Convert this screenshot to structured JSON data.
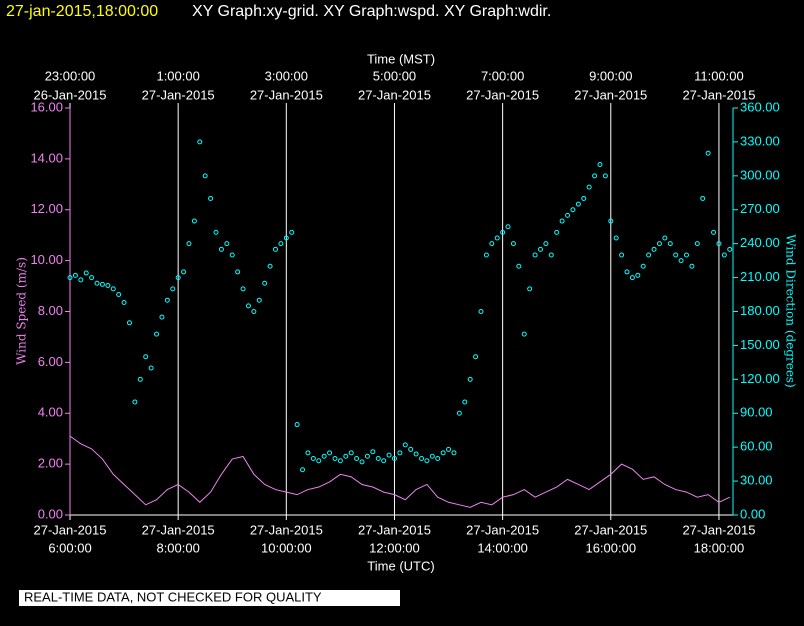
{
  "chart_data": {
    "type": "scatter",
    "title_time": "27-jan-2015,18:00:00",
    "title": "XY Graph:xy-grid.  XY Graph:wspd.  XY Graph:wdir.",
    "xlabel": "Time (UTC)",
    "x2label": "Time (MST)",
    "ylabel": "Wind Speed (m/s)",
    "y2label": "Wind Direction (degrees)",
    "note": "REAL-TIME DATA, NOT CHECKED FOR QUALITY",
    "xlim": [
      6,
      18.26
    ],
    "xticks": [
      {
        "value": 6,
        "date": "27-Jan-2015",
        "label": "6:00:00"
      },
      {
        "value": 8,
        "date": "27-Jan-2015",
        "label": "8:00:00"
      },
      {
        "value": 10,
        "date": "27-Jan-2015",
        "label": "10:00:00"
      },
      {
        "value": 12,
        "date": "27-Jan-2015",
        "label": "12:00:00"
      },
      {
        "value": 14,
        "date": "27-Jan-2015",
        "label": "14:00:00"
      },
      {
        "value": 16,
        "date": "27-Jan-2015",
        "label": "16:00:00"
      },
      {
        "value": 18,
        "date": "27-Jan-2015",
        "label": "18:00:00"
      }
    ],
    "x2ticks": [
      {
        "value": 6,
        "label": "23:00:00",
        "date": "26-Jan-2015"
      },
      {
        "value": 8,
        "label": "1:00:00",
        "date": "27-Jan-2015"
      },
      {
        "value": 10,
        "label": "3:00:00",
        "date": "27-Jan-2015"
      },
      {
        "value": 12,
        "label": "5:00:00",
        "date": "27-Jan-2015"
      },
      {
        "value": 14,
        "label": "7:00:00",
        "date": "27-Jan-2015"
      },
      {
        "value": 16,
        "label": "9:00:00",
        "date": "27-Jan-2015"
      },
      {
        "value": 18,
        "label": "11:00:00",
        "date": "27-Jan-2015"
      }
    ],
    "grid": true,
    "ylim": [
      0,
      16
    ],
    "yticks": [
      {
        "value": 0,
        "label": "0.00"
      },
      {
        "value": 2,
        "label": "2.00"
      },
      {
        "value": 4,
        "label": "4.00"
      },
      {
        "value": 6,
        "label": "6.00"
      },
      {
        "value": 8,
        "label": "8.00"
      },
      {
        "value": 10,
        "label": "10.00"
      },
      {
        "value": 12,
        "label": "12.00"
      },
      {
        "value": 14,
        "label": "14.00"
      },
      {
        "value": 16,
        "label": "16.00"
      }
    ],
    "y2lim": [
      0,
      360
    ],
    "y2ticks": [
      {
        "value": 0,
        "label": "0.00"
      },
      {
        "value": 30,
        "label": "30.00"
      },
      {
        "value": 60,
        "label": "60.00"
      },
      {
        "value": 90,
        "label": "90.00"
      },
      {
        "value": 120,
        "label": "120.00"
      },
      {
        "value": 150,
        "label": "150.00"
      },
      {
        "value": 180,
        "label": "180.00"
      },
      {
        "value": 210,
        "label": "210.00"
      },
      {
        "value": 240,
        "label": "240.00"
      },
      {
        "value": 270,
        "label": "270.00"
      },
      {
        "value": 300,
        "label": "300.00"
      },
      {
        "value": 330,
        "label": "330.00"
      },
      {
        "value": 360,
        "label": "360.00"
      }
    ],
    "series": [
      {
        "name": "wspd",
        "kind": "line",
        "color": "#ee82ee",
        "x": [
          6.0,
          6.2,
          6.4,
          6.6,
          6.8,
          7.0,
          7.2,
          7.4,
          7.6,
          7.8,
          8.0,
          8.2,
          8.4,
          8.6,
          8.8,
          9.0,
          9.2,
          9.4,
          9.6,
          9.8,
          10.0,
          10.2,
          10.4,
          10.6,
          10.8,
          11.0,
          11.2,
          11.4,
          11.6,
          11.8,
          12.0,
          12.2,
          12.4,
          12.6,
          12.8,
          13.0,
          13.2,
          13.4,
          13.6,
          13.8,
          14.0,
          14.2,
          14.4,
          14.6,
          14.8,
          15.0,
          15.2,
          15.4,
          15.6,
          15.8,
          16.0,
          16.2,
          16.4,
          16.6,
          16.8,
          17.0,
          17.2,
          17.4,
          17.6,
          17.8,
          18.0,
          18.2
        ],
        "values": [
          3.1,
          2.8,
          2.6,
          2.2,
          1.6,
          1.2,
          0.8,
          0.4,
          0.6,
          1.0,
          1.2,
          0.9,
          0.5,
          0.9,
          1.6,
          2.2,
          2.3,
          1.6,
          1.2,
          1.0,
          0.9,
          0.8,
          1.0,
          1.1,
          1.3,
          1.6,
          1.5,
          1.2,
          1.1,
          0.9,
          0.8,
          0.6,
          1.0,
          1.2,
          0.7,
          0.5,
          0.4,
          0.3,
          0.5,
          0.4,
          0.7,
          0.8,
          1.0,
          0.7,
          0.9,
          1.1,
          1.4,
          1.2,
          1.0,
          1.3,
          1.6,
          2.0,
          1.8,
          1.4,
          1.5,
          1.2,
          1.0,
          0.9,
          0.7,
          0.8,
          0.5,
          0.7
        ]
      },
      {
        "name": "wdir",
        "kind": "points",
        "axis": "y2",
        "color": "#00ffff",
        "x": [
          6.0,
          6.1,
          6.2,
          6.3,
          6.4,
          6.5,
          6.6,
          6.7,
          6.8,
          6.9,
          7.0,
          7.1,
          7.2,
          7.3,
          7.4,
          7.5,
          7.6,
          7.7,
          7.8,
          7.9,
          8.0,
          8.1,
          8.2,
          8.3,
          8.4,
          8.5,
          8.6,
          8.7,
          8.8,
          8.9,
          9.0,
          9.1,
          9.2,
          9.3,
          9.4,
          9.5,
          9.6,
          9.7,
          9.8,
          9.9,
          10.0,
          10.1,
          10.2,
          10.3,
          10.4,
          10.5,
          10.6,
          10.7,
          10.8,
          10.9,
          11.0,
          11.1,
          11.2,
          11.3,
          11.4,
          11.5,
          11.6,
          11.7,
          11.8,
          11.9,
          12.0,
          12.1,
          12.2,
          12.3,
          12.4,
          12.5,
          12.6,
          12.7,
          12.8,
          12.9,
          13.0,
          13.1,
          13.2,
          13.3,
          13.4,
          13.5,
          13.6,
          13.7,
          13.8,
          13.9,
          14.0,
          14.1,
          14.2,
          14.3,
          14.4,
          14.5,
          14.6,
          14.7,
          14.8,
          14.9,
          15.0,
          15.1,
          15.2,
          15.3,
          15.4,
          15.5,
          15.6,
          15.7,
          15.8,
          15.9,
          16.0,
          16.1,
          16.2,
          16.3,
          16.4,
          16.5,
          16.6,
          16.7,
          16.8,
          16.9,
          17.0,
          17.1,
          17.2,
          17.3,
          17.4,
          17.5,
          17.6,
          17.7,
          17.8,
          17.9,
          18.0,
          18.1,
          18.2
        ],
        "values": [
          210,
          212,
          208,
          214,
          210,
          205,
          204,
          203,
          200,
          195,
          188,
          170,
          100,
          120,
          140,
          130,
          160,
          175,
          190,
          200,
          210,
          215,
          240,
          260,
          330,
          300,
          280,
          250,
          235,
          240,
          230,
          215,
          200,
          185,
          180,
          190,
          205,
          220,
          235,
          240,
          245,
          250,
          80,
          40,
          55,
          50,
          48,
          52,
          55,
          50,
          48,
          52,
          55,
          50,
          47,
          52,
          56,
          50,
          48,
          53,
          50,
          55,
          62,
          58,
          54,
          50,
          48,
          52,
          50,
          55,
          58,
          55,
          90,
          100,
          120,
          140,
          180,
          230,
          240,
          245,
          250,
          255,
          240,
          220,
          160,
          200,
          230,
          235,
          240,
          230,
          250,
          260,
          265,
          270,
          275,
          280,
          290,
          300,
          310,
          300,
          260,
          245,
          230,
          215,
          210,
          212,
          220,
          230,
          235,
          240,
          245,
          240,
          230,
          225,
          230,
          220,
          240,
          280,
          320,
          250,
          240,
          230,
          235
        ]
      }
    ]
  }
}
